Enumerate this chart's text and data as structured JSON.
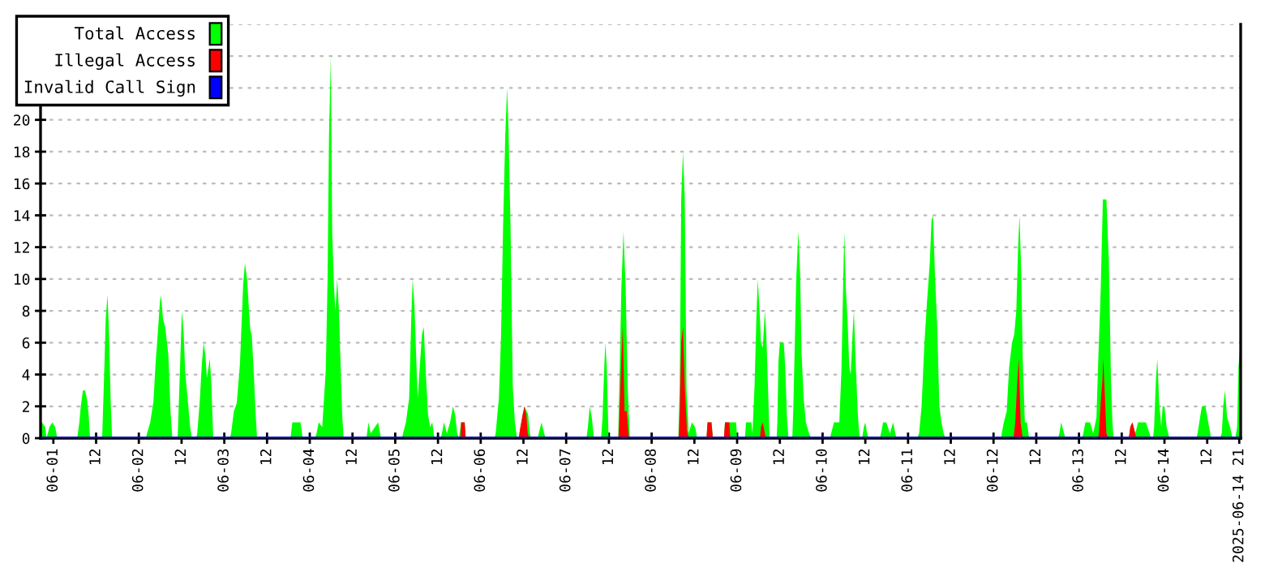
{
  "chart_data": {
    "type": "area",
    "xlim": [
      "2025-05-31T20:24",
      "2025-06-14T21:24"
    ],
    "ylim": [
      0,
      26
    ],
    "xticks": [
      {
        "value": "2025-06-01T00:00",
        "label": "06-01"
      },
      {
        "value": "2025-06-01T12:00",
        "label": "12"
      },
      {
        "value": "2025-06-02T00:00",
        "label": "06-02"
      },
      {
        "value": "2025-06-02T12:00",
        "label": "12"
      },
      {
        "value": "2025-06-03T00:00",
        "label": "06-03"
      },
      {
        "value": "2025-06-03T12:00",
        "label": "12"
      },
      {
        "value": "2025-06-04T00:00",
        "label": "06-04"
      },
      {
        "value": "2025-06-04T12:00",
        "label": "12"
      },
      {
        "value": "2025-06-05T00:00",
        "label": "06-05"
      },
      {
        "value": "2025-06-05T12:00",
        "label": "12"
      },
      {
        "value": "2025-06-06T00:00",
        "label": "06-06"
      },
      {
        "value": "2025-06-06T12:00",
        "label": "12"
      },
      {
        "value": "2025-06-07T00:00",
        "label": "06-07"
      },
      {
        "value": "2025-06-07T12:00",
        "label": "12"
      },
      {
        "value": "2025-06-08T00:00",
        "label": "06-08"
      },
      {
        "value": "2025-06-08T12:00",
        "label": "12"
      },
      {
        "value": "2025-06-09T00:00",
        "label": "06-09"
      },
      {
        "value": "2025-06-09T12:00",
        "label": "12"
      },
      {
        "value": "2025-06-10T00:00",
        "label": "06-10"
      },
      {
        "value": "2025-06-10T12:00",
        "label": "12"
      },
      {
        "value": "2025-06-11T00:00",
        "label": "06-11"
      },
      {
        "value": "2025-06-11T12:00",
        "label": "12"
      },
      {
        "value": "2025-06-12T00:00",
        "label": "06-12"
      },
      {
        "value": "2025-06-12T12:00",
        "label": "12"
      },
      {
        "value": "2025-06-13T00:00",
        "label": "06-13"
      },
      {
        "value": "2025-06-13T12:00",
        "label": "12"
      },
      {
        "value": "2025-06-14T00:00",
        "label": "06-14"
      },
      {
        "value": "2025-06-14T12:00",
        "label": "12"
      },
      {
        "value": "2025-06-14T21:00",
        "label": "2025-06-14 21"
      }
    ],
    "yticks": [
      0,
      2,
      4,
      6,
      8,
      10,
      12,
      14,
      16,
      18,
      20,
      {
        "value": 22,
        "label": null
      },
      {
        "value": 24,
        "label": null
      },
      {
        "value": 26,
        "label": null
      }
    ],
    "grid": "y",
    "legend": "top left",
    "series": [
      {
        "name": "Total Access",
        "color": "#00ff00",
        "x": [
          "2025-05-31T20:24",
          "2025-05-31T20:48",
          "2025-05-31T21:42",
          "2025-05-31T22:06",
          "2025-05-31T22:54",
          "2025-05-31T23:42",
          "2025-06-01T00:30",
          "2025-06-01T01:06",
          "2025-06-01T06:42",
          "2025-06-01T07:18",
          "2025-06-01T07:42",
          "2025-06-01T08:18",
          "2025-06-01T08:54",
          "2025-06-01T09:24",
          "2025-06-01T09:54",
          "2025-06-01T10:18",
          "2025-06-01T13:42",
          "2025-06-01T14:18",
          "2025-06-01T14:42",
          "2025-06-01T15:12",
          "2025-06-01T15:36",
          "2025-06-01T16:06",
          "2025-06-01T16:30",
          "2025-06-02T02:00",
          "2025-06-02T02:18",
          "2025-06-02T03:12",
          "2025-06-02T04:06",
          "2025-06-02T04:42",
          "2025-06-02T05:18",
          "2025-06-02T05:54",
          "2025-06-02T06:12",
          "2025-06-02T06:48",
          "2025-06-02T07:24",
          "2025-06-02T08:18",
          "2025-06-02T08:54",
          "2025-06-02T09:24",
          "2025-06-02T10:54",
          "2025-06-02T11:12",
          "2025-06-02T12:06",
          "2025-06-02T12:36",
          "2025-06-02T13:00",
          "2025-06-02T13:42",
          "2025-06-02T14:24",
          "2025-06-02T14:54",
          "2025-06-02T16:06",
          "2025-06-02T16:24",
          "2025-06-02T17:06",
          "2025-06-02T17:42",
          "2025-06-02T18:12",
          "2025-06-02T18:42",
          "2025-06-02T19:06",
          "2025-06-02T19:36",
          "2025-06-02T19:54",
          "2025-06-02T20:18",
          "2025-06-02T20:54",
          "2025-06-03T01:36",
          "2025-06-03T01:54",
          "2025-06-03T02:42",
          "2025-06-03T03:30",
          "2025-06-03T04:24",
          "2025-06-03T05:18",
          "2025-06-03T05:48",
          "2025-06-03T06:24",
          "2025-06-03T06:48",
          "2025-06-03T07:18",
          "2025-06-03T07:42",
          "2025-06-03T08:12",
          "2025-06-03T08:48",
          "2025-06-03T09:12",
          "2025-06-03T18:36",
          "2025-06-03T19:06",
          "2025-06-03T21:24",
          "2025-06-03T22:00",
          "2025-06-04T01:30",
          "2025-06-04T01:54",
          "2025-06-04T02:30",
          "2025-06-04T03:30",
          "2025-06-04T04:30",
          "2025-06-04T05:00",
          "2025-06-04T05:24",
          "2025-06-04T05:54",
          "2025-06-04T06:18",
          "2025-06-04T06:48",
          "2025-06-04T07:12",
          "2025-06-04T07:42",
          "2025-06-04T08:12",
          "2025-06-04T08:36",
          "2025-06-04T09:06",
          "2025-06-04T09:30",
          "2025-06-04T15:54",
          "2025-06-04T16:30",
          "2025-06-04T17:06",
          "2025-06-04T18:18",
          "2025-06-04T19:12",
          "2025-06-04T20:00",
          "2025-06-05T01:54",
          "2025-06-05T02:12",
          "2025-06-05T03:00",
          "2025-06-05T03:54",
          "2025-06-05T04:30",
          "2025-06-05T04:54",
          "2025-06-05T05:24",
          "2025-06-05T05:54",
          "2025-06-05T06:18",
          "2025-06-05T06:54",
          "2025-06-05T07:30",
          "2025-06-05T08:00",
          "2025-06-05T08:36",
          "2025-06-05T09:12",
          "2025-06-05T09:48",
          "2025-06-05T10:24",
          "2025-06-05T11:00",
          "2025-06-05T12:48",
          "2025-06-05T13:06",
          "2025-06-05T13:42",
          "2025-06-05T14:30",
          "2025-06-05T15:24",
          "2025-06-05T16:12",
          "2025-06-05T16:48",
          "2025-06-05T17:24",
          "2025-06-05T17:54",
          "2025-06-05T18:30",
          "2025-06-05T19:30",
          "2025-06-05T19:48",
          "2025-06-06T03:54",
          "2025-06-06T04:12",
          "2025-06-06T05:06",
          "2025-06-06T05:42",
          "2025-06-06T06:18",
          "2025-06-06T06:54",
          "2025-06-06T07:24",
          "2025-06-06T07:48",
          "2025-06-06T08:24",
          "2025-06-06T09:00",
          "2025-06-06T09:36",
          "2025-06-06T10:12",
          "2025-06-06T10:42",
          "2025-06-06T11:00",
          "2025-06-06T11:48",
          "2025-06-06T12:18",
          "2025-06-06T12:54",
          "2025-06-06T13:18",
          "2025-06-06T13:48",
          "2025-06-06T14:12",
          "2025-06-06T16:00",
          "2025-06-06T16:18",
          "2025-06-06T17:06",
          "2025-06-06T17:48",
          "2025-06-06T18:18",
          "2025-06-07T05:42",
          "2025-06-07T06:06",
          "2025-06-07T06:36",
          "2025-06-07T07:12",
          "2025-06-07T07:48",
          "2025-06-07T09:48",
          "2025-06-07T10:12",
          "2025-06-07T10:42",
          "2025-06-07T11:00",
          "2025-06-07T11:24",
          "2025-06-07T11:54",
          "2025-06-07T14:36",
          "2025-06-07T14:54",
          "2025-06-07T15:30",
          "2025-06-07T16:06",
          "2025-06-07T16:42",
          "2025-06-07T17:18",
          "2025-06-07T17:54",
          "2025-06-08T07:30",
          "2025-06-08T07:54",
          "2025-06-08T08:18",
          "2025-06-08T08:48",
          "2025-06-08T09:18",
          "2025-06-08T09:48",
          "2025-06-08T10:24",
          "2025-06-08T11:18",
          "2025-06-08T12:12",
          "2025-06-08T12:48",
          "2025-06-08T15:24",
          "2025-06-08T15:42",
          "2025-06-08T16:48",
          "2025-06-08T17:12",
          "2025-06-08T20:18",
          "2025-06-08T20:36",
          "2025-06-08T23:42",
          "2025-06-09T00:00",
          "2025-06-09T02:12",
          "2025-06-09T02:30",
          "2025-06-09T04:00",
          "2025-06-09T04:18",
          "2025-06-09T04:54",
          "2025-06-09T05:24",
          "2025-06-09T05:48",
          "2025-06-09T06:18",
          "2025-06-09T06:42",
          "2025-06-09T07:12",
          "2025-06-09T07:48",
          "2025-06-09T08:12",
          "2025-06-09T08:42",
          "2025-06-09T09:06",
          "2025-06-09T11:06",
          "2025-06-09T11:18",
          "2025-06-09T11:36",
          "2025-06-09T12:00",
          "2025-06-09T13:06",
          "2025-06-09T13:30",
          "2025-06-09T14:00",
          "2025-06-09T14:24",
          "2025-06-09T15:30",
          "2025-06-09T15:48",
          "2025-06-09T16:36",
          "2025-06-09T17:12",
          "2025-06-09T17:42",
          "2025-06-09T18:06",
          "2025-06-09T18:42",
          "2025-06-09T19:18",
          "2025-06-09T20:12",
          "2025-06-09T20:48",
          "2025-06-10T02:06",
          "2025-06-10T02:24",
          "2025-06-10T03:12",
          "2025-06-10T04:42",
          "2025-06-10T05:18",
          "2025-06-10T05:48",
          "2025-06-10T06:06",
          "2025-06-10T06:30",
          "2025-06-10T07:00",
          "2025-06-10T07:30",
          "2025-06-10T07:54",
          "2025-06-10T08:24",
          "2025-06-10T08:48",
          "2025-06-10T09:18",
          "2025-06-10T09:54",
          "2025-06-10T10:24",
          "2025-06-10T11:06",
          "2025-06-10T11:36",
          "2025-06-10T12:00",
          "2025-06-10T12:30",
          "2025-06-10T12:54",
          "2025-06-10T16:06",
          "2025-06-10T16:24",
          "2025-06-10T17:00",
          "2025-06-10T17:54",
          "2025-06-10T18:54",
          "2025-06-10T19:48",
          "2025-06-10T20:42",
          "2025-06-11T02:36",
          "2025-06-11T03:06",
          "2025-06-11T03:48",
          "2025-06-11T04:36",
          "2025-06-11T05:18",
          "2025-06-11T06:06",
          "2025-06-11T06:36",
          "2025-06-11T07:00",
          "2025-06-11T07:36",
          "2025-06-11T08:12",
          "2025-06-11T08:48",
          "2025-06-11T09:24",
          "2025-06-11T10:00",
          "2025-06-11T10:30",
          "2025-06-12T02:12",
          "2025-06-12T02:18",
          "2025-06-12T02:54",
          "2025-06-12T03:42",
          "2025-06-12T04:24",
          "2025-06-12T05:12",
          "2025-06-12T05:48",
          "2025-06-12T06:24",
          "2025-06-12T06:54",
          "2025-06-12T07:18",
          "2025-06-12T07:48",
          "2025-06-12T08:12",
          "2025-06-12T08:48",
          "2025-06-12T09:24",
          "2025-06-12T10:00",
          "2025-06-12T18:06",
          "2025-06-12T18:30",
          "2025-06-12T19:00",
          "2025-06-12T19:48",
          "2025-06-12T20:12",
          "2025-06-13T00:54",
          "2025-06-13T01:12",
          "2025-06-13T01:48",
          "2025-06-13T03:06",
          "2025-06-13T04:00",
          "2025-06-13T04:54",
          "2025-06-13T05:30",
          "2025-06-13T06:06",
          "2025-06-13T06:42",
          "2025-06-13T07:42",
          "2025-06-13T08:24",
          "2025-06-13T09:00",
          "2025-06-13T09:24",
          "2025-06-13T09:42",
          "2025-06-13T14:00",
          "2025-06-13T14:24",
          "2025-06-13T15:00",
          "2025-06-13T15:48",
          "2025-06-13T16:36",
          "2025-06-13T18:48",
          "2025-06-13T19:48",
          "2025-06-13T20:12",
          "2025-06-13T20:48",
          "2025-06-13T21:06",
          "2025-06-13T21:36",
          "2025-06-13T22:00",
          "2025-06-13T22:30",
          "2025-06-13T23:06",
          "2025-06-13T23:30",
          "2025-06-14T00:00",
          "2025-06-14T00:36",
          "2025-06-14T01:24",
          "2025-06-14T09:00",
          "2025-06-14T09:18",
          "2025-06-14T10:00",
          "2025-06-14T10:30",
          "2025-06-14T11:30",
          "2025-06-14T12:18",
          "2025-06-14T13:06",
          "2025-06-14T15:36",
          "2025-06-14T16:06",
          "2025-06-14T16:30",
          "2025-06-14T17:00",
          "2025-06-14T17:36",
          "2025-06-14T18:24",
          "2025-06-14T19:06",
          "2025-06-14T19:54",
          "2025-06-14T20:24",
          "2025-06-14T20:48",
          "2025-06-14T21:18",
          "2025-06-14T21:24"
        ],
        "values": [
          1,
          1,
          0.7,
          0,
          0.7,
          1,
          0.7,
          0,
          0,
          1,
          2,
          3,
          3,
          2.5,
          1.5,
          0,
          0,
          4.3,
          7.5,
          9,
          6.8,
          2.3,
          0,
          0,
          0.3,
          1,
          2.3,
          4.7,
          6.5,
          8.5,
          9,
          7.5,
          7,
          5.2,
          1.7,
          0,
          0,
          2,
          8,
          6.6,
          4.2,
          2.5,
          0.7,
          0,
          0,
          0.3,
          2.3,
          4.7,
          6,
          5.2,
          3.8,
          4.5,
          5,
          3.7,
          0,
          0,
          0.3,
          1.7,
          2.2,
          4.7,
          9.7,
          11,
          10,
          8.5,
          6.8,
          6.5,
          4.5,
          1.5,
          0,
          0,
          1,
          1,
          0,
          0,
          0.3,
          1,
          0.7,
          4.3,
          10,
          19,
          24,
          13,
          9.5,
          8,
          10,
          8,
          5,
          1.5,
          0,
          0,
          1,
          0.3,
          0.7,
          1,
          0,
          0,
          0.3,
          1,
          2.5,
          7.5,
          10,
          8.3,
          5,
          2.5,
          4.5,
          6.5,
          7,
          4,
          1.5,
          0.7,
          1,
          0,
          0,
          0.3,
          1,
          0.3,
          1,
          2,
          1.5,
          0.3,
          0,
          1,
          1,
          0,
          0,
          0.3,
          2.5,
          6.3,
          13.5,
          19,
          22,
          19.5,
          13,
          3.3,
          1,
          0,
          0,
          0.5,
          1.5,
          2,
          1.7,
          1.5,
          0.3,
          0,
          0,
          0.3,
          1,
          0.3,
          0,
          0,
          0.7,
          2,
          1.3,
          0,
          0,
          1.3,
          4.5,
          6,
          4.5,
          0,
          0,
          3,
          9.5,
          13,
          9.5,
          3,
          0,
          0,
          3.5,
          15,
          18,
          15,
          3,
          0.3,
          1,
          0.7,
          0,
          0,
          1,
          1,
          0,
          0,
          1,
          1,
          0,
          0,
          1,
          1,
          0.3,
          3.3,
          7.5,
          10,
          8,
          6,
          5.7,
          8,
          6.5,
          3,
          0,
          0,
          1,
          4.8,
          6,
          6,
          4.5,
          1.3,
          0,
          0,
          2,
          10,
          13,
          10.3,
          5.3,
          2.5,
          1,
          0.3,
          0,
          0,
          0.3,
          1,
          1,
          4.3,
          10,
          13,
          9.5,
          7.5,
          4.5,
          4,
          6.5,
          8,
          4.7,
          1.5,
          0,
          0,
          0.7,
          1,
          0.3,
          0,
          0,
          0.3,
          1,
          1,
          0.3,
          1,
          0,
          0,
          0.3,
          2,
          6,
          8.5,
          11,
          13.7,
          14,
          10,
          7,
          2,
          1,
          0.3,
          0,
          0,
          0.3,
          1,
          1.7,
          4.5,
          6,
          6.5,
          8,
          12,
          14,
          10.3,
          5,
          1,
          1,
          0,
          0,
          0.3,
          1,
          0.3,
          0,
          0,
          0.3,
          1,
          1,
          0.3,
          1.3,
          5.5,
          9.3,
          15,
          15,
          11,
          3.5,
          1,
          0,
          0,
          0.7,
          1,
          0.3,
          1,
          1,
          0.3,
          0,
          0,
          0.7,
          3.7,
          5,
          2.3,
          0.7,
          2,
          2,
          0.7,
          0,
          0,
          0.3,
          1.3,
          2,
          2,
          1,
          0,
          0,
          0.3,
          2,
          3,
          1.3,
          0.7,
          0,
          0,
          0.7,
          4.5,
          6,
          6
        ]
      },
      {
        "name": "Illegal Access",
        "color": "#ff0000",
        "x": [
          "2025-05-31T20:24",
          "2025-06-05T18:18",
          "2025-06-05T18:30",
          "2025-06-05T19:30",
          "2025-06-05T19:48",
          "2025-06-06T10:42",
          "2025-06-06T11:00",
          "2025-06-06T11:48",
          "2025-06-06T12:18",
          "2025-06-06T12:48",
          "2025-06-06T13:12",
          "2025-06-06T13:36",
          "2025-06-07T14:42",
          "2025-06-07T15:00",
          "2025-06-07T15:30",
          "2025-06-07T15:54",
          "2025-06-07T16:24",
          "2025-06-07T17:00",
          "2025-06-07T17:36",
          "2025-06-08T07:36",
          "2025-06-08T07:54",
          "2025-06-08T08:18",
          "2025-06-08T08:48",
          "2025-06-08T09:18",
          "2025-06-08T09:54",
          "2025-06-08T10:24",
          "2025-06-08T15:24",
          "2025-06-08T15:42",
          "2025-06-08T16:48",
          "2025-06-08T17:12",
          "2025-06-08T20:18",
          "2025-06-08T20:36",
          "2025-06-08T21:48",
          "2025-06-08T22:06",
          "2025-06-09T06:24",
          "2025-06-09T06:42",
          "2025-06-09T07:12",
          "2025-06-09T07:48",
          "2025-06-09T08:06",
          "2025-06-12T05:36",
          "2025-06-12T06:06",
          "2025-06-12T06:42",
          "2025-06-12T07:06",
          "2025-06-12T07:36",
          "2025-06-12T08:12",
          "2025-06-13T05:18",
          "2025-06-13T05:36",
          "2025-06-13T06:06",
          "2025-06-13T06:36",
          "2025-06-13T06:48",
          "2025-06-13T07:18",
          "2025-06-13T07:42",
          "2025-06-13T08:12",
          "2025-06-13T14:00",
          "2025-06-13T14:24",
          "2025-06-13T15:00",
          "2025-06-13T15:48",
          "2025-06-13T16:06",
          "2025-06-14T21:24"
        ],
        "values": [
          0,
          0,
          1,
          1,
          0,
          0,
          0.5,
          1.5,
          2,
          1.5,
          0.3,
          0,
          0,
          1.7,
          5,
          7,
          1.7,
          1.7,
          0,
          0,
          1.7,
          6,
          7,
          3.3,
          0.5,
          0,
          0,
          1,
          1,
          0,
          0,
          1,
          1,
          0,
          0,
          0.7,
          1,
          0.3,
          0,
          0,
          1,
          3.7,
          5,
          1,
          0,
          0,
          0.3,
          2.3,
          3.7,
          5,
          2.5,
          0.3,
          0,
          0,
          0.7,
          1,
          0.3,
          0,
          0
        ]
      },
      {
        "name": "Invalid Call Sign",
        "color": "#0000ff",
        "type": "line",
        "x": [
          "2025-05-31T20:24",
          "2025-06-14T21:24"
        ],
        "values": [
          0,
          0
        ]
      }
    ]
  }
}
